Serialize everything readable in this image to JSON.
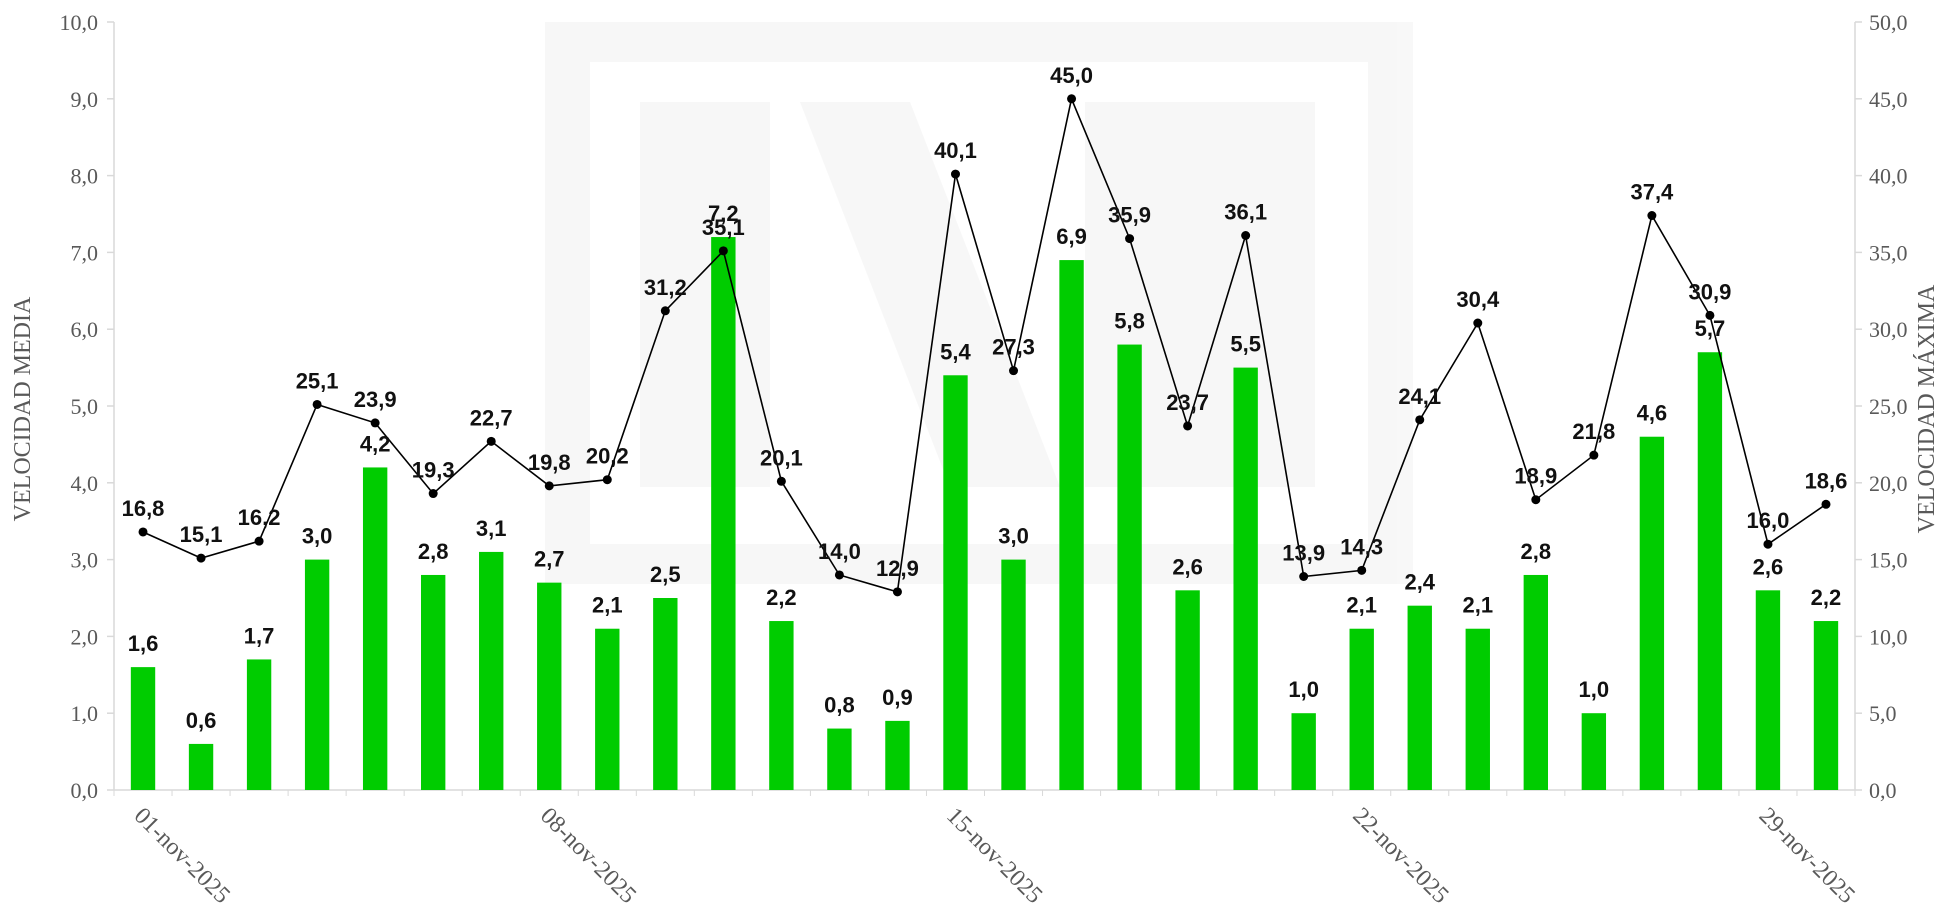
{
  "chart_data": {
    "type": "bar+line",
    "title": "",
    "ylabel_left": "VELOCIDAD MEDIA",
    "ylabel_right": "VELOCIDAD MÁXIMA",
    "ylim_left": [
      0,
      10
    ],
    "ylim_right": [
      0,
      50
    ],
    "yticks_left": [
      "0,0",
      "1,0",
      "2,0",
      "3,0",
      "4,0",
      "5,0",
      "6,0",
      "7,0",
      "8,0",
      "9,0",
      "10,0"
    ],
    "yticks_right": [
      "0,0",
      "5,0",
      "10,0",
      "15,0",
      "20,0",
      "25,0",
      "30,0",
      "35,0",
      "40,0",
      "45,0",
      "50,0"
    ],
    "x_tick_labels": [
      {
        "day": 1,
        "label": "01-nov-2025"
      },
      {
        "day": 8,
        "label": "08-nov-2025"
      },
      {
        "day": 15,
        "label": "15-nov-2025"
      },
      {
        "day": 22,
        "label": "22-nov-2025"
      },
      {
        "day": 29,
        "label": "29-nov-2025"
      }
    ],
    "categories": [
      "01-nov-2025",
      "02-nov-2025",
      "03-nov-2025",
      "04-nov-2025",
      "05-nov-2025",
      "06-nov-2025",
      "07-nov-2025",
      "08-nov-2025",
      "09-nov-2025",
      "10-nov-2025",
      "11-nov-2025",
      "12-nov-2025",
      "13-nov-2025",
      "14-nov-2025",
      "15-nov-2025",
      "16-nov-2025",
      "17-nov-2025",
      "18-nov-2025",
      "19-nov-2025",
      "20-nov-2025",
      "21-nov-2025",
      "22-nov-2025",
      "23-nov-2025",
      "24-nov-2025",
      "25-nov-2025",
      "26-nov-2025",
      "27-nov-2025",
      "28-nov-2025",
      "29-nov-2025",
      "30-nov-2025"
    ],
    "series": [
      {
        "name": "",
        "kind": "bar",
        "axis": "left",
        "color": "#00cc00",
        "values": [
          1.6,
          0.6,
          1.7,
          3.0,
          4.2,
          2.8,
          3.1,
          2.7,
          2.1,
          2.5,
          7.2,
          2.2,
          0.8,
          0.9,
          5.4,
          3.0,
          6.9,
          5.8,
          2.6,
          5.5,
          1.0,
          2.1,
          2.4,
          2.1,
          2.8,
          1.0,
          4.6,
          5.7,
          2.6,
          2.2
        ],
        "labels": [
          "1,6",
          "0,6",
          "1,7",
          "3,0",
          "4,2",
          "2,8",
          "3,1",
          "2,7",
          "2,1",
          "2,5",
          "7,2",
          "2,2",
          "0,8",
          "0,9",
          "5,4",
          "3,0",
          "6,9",
          "5,8",
          "2,6",
          "5,5",
          "1,0",
          "2,1",
          "2,4",
          "2,1",
          "2,8",
          "1,0",
          "4,6",
          "5,7",
          "2,6",
          "2,2"
        ]
      },
      {
        "name": "",
        "kind": "line",
        "axis": "right",
        "color": "#000000",
        "values": [
          16.8,
          15.1,
          16.2,
          25.1,
          23.9,
          19.3,
          22.7,
          19.8,
          20.2,
          31.2,
          35.1,
          20.1,
          14.0,
          12.9,
          40.1,
          27.3,
          45.0,
          35.9,
          23.7,
          36.1,
          13.9,
          14.3,
          24.1,
          30.4,
          18.9,
          21.8,
          37.4,
          30.9,
          16.0,
          18.6
        ],
        "labels": [
          "16,8",
          "15,1",
          "16,2",
          "25,1",
          "23,9",
          "19,3",
          "22,7",
          "19,8",
          "20,2",
          "31,2",
          "35,1",
          "20,1",
          "14,0",
          "12,9",
          "40,1",
          "27,3",
          "45,0",
          "35,9",
          "23,7",
          "36,1",
          "13,9",
          "14,3",
          "24,1",
          "30,4",
          "18,9",
          "21,8",
          "37,4",
          "30,9",
          "16,0",
          "18,6"
        ]
      }
    ],
    "grid": false,
    "legend": "none",
    "watermark": "INTA"
  }
}
